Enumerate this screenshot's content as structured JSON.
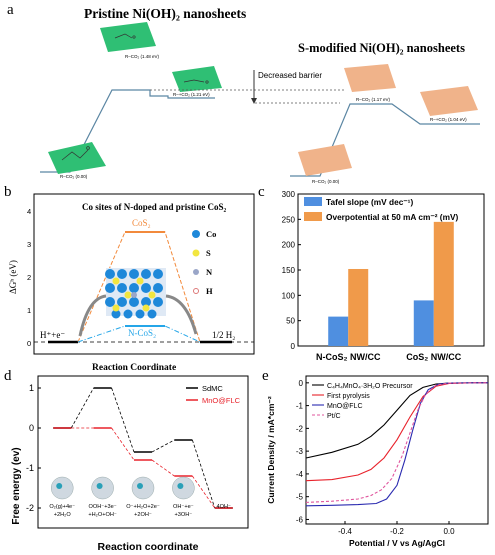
{
  "panel_labels": {
    "a": "a",
    "b": "b",
    "c": "c",
    "d": "d",
    "e": "e"
  },
  "colors": {
    "pristine_sheet": "#2fbf74",
    "modified_sheet": "#f0b38a",
    "path_line": "#5b86a3",
    "cos2_orange": "#f28a3c",
    "ncos2_blue": "#25a6e8",
    "bar_blue": "#4f8fe0",
    "bar_orange": "#f09a4a",
    "sdmc_black": "#000000",
    "mno_red": "#e8222b",
    "pt_pink": "#e0559d"
  },
  "panel_a": {
    "title_left": "Pristine Ni(OH)₂ nanosheets",
    "title_right": "S-modified Ni(OH)₂ nanosheets",
    "barrier_label": "Decreased barrier",
    "left_levels": [
      {
        "label": "R–CO₂  (0.00)"
      },
      {
        "label": "R–CO₂   (1.48 eV)"
      },
      {
        "label": "R–+CO₂  (1.21 eV)"
      }
    ],
    "right_levels": [
      {
        "label": "R–CO₂   (0.00)"
      },
      {
        "label": "R–CO₂  (1.17 eV)"
      },
      {
        "label": "R–+CO₂  (1.04 eV)"
      }
    ]
  },
  "panel_b": {
    "title": "Co sites of N-doped and pristine CoS₂",
    "ylabel": "ΔGʰ (eV)",
    "xlabel": "Reaction Coordinate",
    "yticks": [
      "0",
      "1",
      "2",
      "3",
      "4"
    ],
    "start_label": "H⁺+e⁻",
    "end_label": "1/2 H₂",
    "cos2_label": "CoS₂",
    "ncos2_label": "N-CoS₂",
    "legend": [
      "Co",
      "S",
      "N",
      "H"
    ]
  },
  "panel_d": {
    "ylabel": "Free energy (ev)",
    "xlabel": "Reaction coordinate",
    "yticks": [
      "1",
      "0",
      "-1",
      "-2"
    ],
    "legend": [
      "SdMC",
      "MnO@FLC"
    ],
    "steps": [
      "O₂(g)+4e⁻\n+2H₂O",
      "OOH⁻+3e⁻\n+H₂O+OH⁻",
      "O⁻+H₂O+2e⁻\n+2OH⁻",
      "OH⁻+e⁻\n+3OH⁻",
      "4OH⁻"
    ]
  },
  "chart_data": [
    {
      "type": "bar",
      "panel": "c",
      "categories": [
        "N-CoS₂ NW/CC",
        "CoS₂ NW/CC"
      ],
      "series": [
        {
          "name": "Tafel slope (mV dec⁻¹)",
          "values": [
            58,
            90
          ]
        },
        {
          "name": "Overpotential at 50 mA cm⁻² (mV)",
          "values": [
            152,
            245
          ]
        }
      ],
      "ylim": [
        0,
        300
      ],
      "yticks": [
        0,
        50,
        100,
        150,
        200,
        250,
        300
      ],
      "grid": false,
      "legend": "top-left"
    },
    {
      "type": "line",
      "panel": "d",
      "xlabel": "Reaction coordinate",
      "ylabel": "Free energy (ev)",
      "ylim": [
        -2.5,
        1.3
      ],
      "series": [
        {
          "name": "SdMC",
          "values": [
            0,
            1.0,
            -0.6,
            -0.3,
            -2.0
          ]
        },
        {
          "name": "MnO@FLC",
          "values": [
            0,
            0,
            -0.8,
            -1.2,
            -2.0
          ]
        }
      ],
      "legend": "top-right"
    },
    {
      "type": "line",
      "panel": "e",
      "xlabel": "Potential / V vs Ag/AgCl",
      "ylabel": "Current Density / mA*cm⁻²",
      "xlim": [
        -0.55,
        0.15
      ],
      "ylim": [
        -6.2,
        0.3
      ],
      "xticks": [
        -0.4,
        -0.2,
        0.0
      ],
      "yticks": [
        0,
        -1,
        -2,
        -3,
        -4,
        -5,
        -6
      ],
      "series": [
        {
          "name": "C₄H₄MnO₄·3H₂O Precursor",
          "x": [
            -0.55,
            -0.45,
            -0.35,
            -0.3,
            -0.25,
            -0.2,
            -0.15,
            -0.1,
            -0.05,
            0.0,
            0.1,
            0.15
          ],
          "y": [
            -3.3,
            -3.05,
            -2.7,
            -2.35,
            -1.85,
            -1.2,
            -0.55,
            -0.2,
            -0.05,
            -0.01,
            0.0,
            0.0
          ]
        },
        {
          "name": "First pyrolysis",
          "x": [
            -0.55,
            -0.45,
            -0.35,
            -0.3,
            -0.25,
            -0.2,
            -0.15,
            -0.1,
            -0.05,
            0.0,
            0.1,
            0.15
          ],
          "y": [
            -4.3,
            -4.25,
            -4.05,
            -3.8,
            -3.3,
            -2.5,
            -1.5,
            -0.6,
            -0.15,
            -0.03,
            0.0,
            0.0
          ]
        },
        {
          "name": "MnO@FLC",
          "x": [
            -0.55,
            -0.45,
            -0.35,
            -0.28,
            -0.24,
            -0.2,
            -0.17,
            -0.14,
            -0.11,
            -0.08,
            -0.04,
            0.0,
            0.1,
            0.15
          ],
          "y": [
            -5.4,
            -5.38,
            -5.35,
            -5.3,
            -5.1,
            -4.5,
            -3.4,
            -2.1,
            -0.9,
            -0.3,
            -0.06,
            -0.01,
            0.0,
            0.0
          ]
        },
        {
          "name": "Pt/C",
          "x": [
            -0.55,
            -0.45,
            -0.35,
            -0.3,
            -0.26,
            -0.22,
            -0.18,
            -0.15,
            -0.12,
            -0.09,
            -0.05,
            0.0,
            0.1,
            0.15
          ],
          "y": [
            -5.25,
            -5.2,
            -5.1,
            -4.95,
            -4.7,
            -4.2,
            -3.2,
            -2.2,
            -1.2,
            -0.5,
            -0.1,
            -0.01,
            0.0,
            0.0
          ]
        }
      ],
      "legend": "top-left"
    }
  ]
}
